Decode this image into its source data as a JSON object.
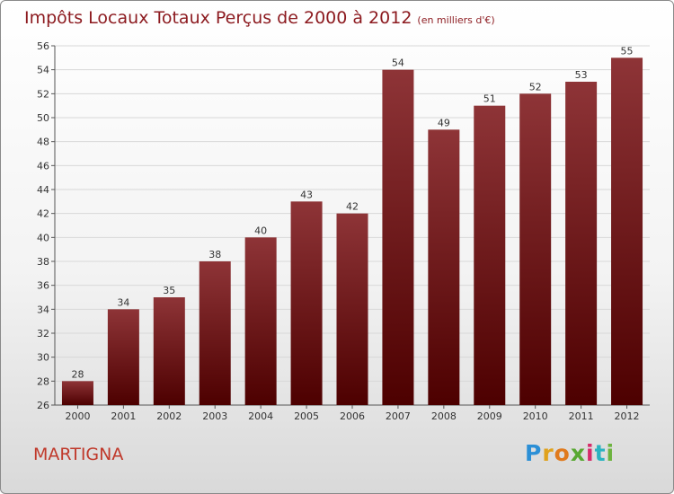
{
  "header": {
    "title": "Impôts Locaux Totaux Perçus de 2000 à 2012",
    "unit": "(en milliers d'€)"
  },
  "footer": {
    "commune": "MARTIGNA",
    "logo_letters": [
      "P",
      "r",
      "o",
      "x",
      "i",
      "t",
      "i"
    ],
    "logo_colors": [
      "#2b8fd6",
      "#e0a21d",
      "#e07a1d",
      "#58a832",
      "#d62b6a",
      "#2bb3c0",
      "#6db33f"
    ]
  },
  "colors": {
    "bar_top": "#8e3437",
    "bar_bottom": "#4d0000",
    "grid": "#d8d8d8",
    "axis": "#555555"
  },
  "chart_data": {
    "type": "bar",
    "title": "Impôts Locaux Totaux Perçus de 2000 à 2012",
    "subtitle": "(en milliers d'€)",
    "xlabel": "",
    "ylabel": "",
    "categories": [
      "2000",
      "2001",
      "2002",
      "2003",
      "2004",
      "2005",
      "2006",
      "2007",
      "2008",
      "2009",
      "2010",
      "2011",
      "2012"
    ],
    "values": [
      28,
      34,
      35,
      38,
      40,
      43,
      42,
      54,
      49,
      51,
      52,
      53,
      55
    ],
    "ylim": [
      26,
      56
    ],
    "yticks": [
      26,
      28,
      30,
      32,
      34,
      36,
      38,
      40,
      42,
      44,
      46,
      48,
      50,
      52,
      54,
      56
    ],
    "grid": true,
    "data_labels": true
  }
}
